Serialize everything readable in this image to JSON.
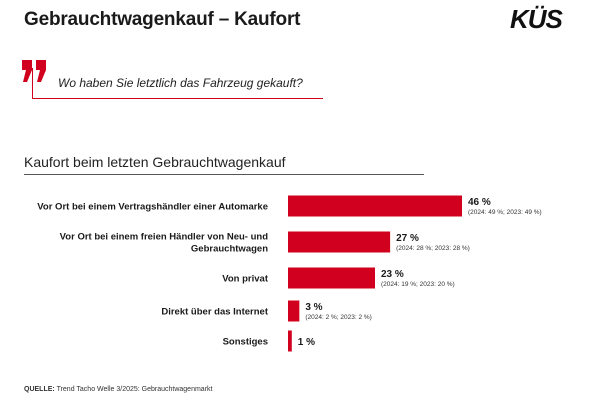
{
  "title": "Gebrauchtwagenkauf – Kaufort",
  "logo": "KÜS",
  "question": "Wo haben Sie letztlich das Fahrzeug gekauft?",
  "source": {
    "label": "QUELLE:",
    "text": "Trend Tacho Welle 3/2025: Gebrauchtwagenmarkt"
  },
  "colors": {
    "accent": "#d0001e"
  },
  "icons": {
    "quote": "quotation-mark-icon"
  },
  "chart_data": {
    "type": "bar",
    "orientation": "horizontal",
    "title": "Kaufort beim letzten Gebrauchtwagenkauf",
    "unit": "%",
    "xlim": [
      0,
      50
    ],
    "grid": false,
    "categories": [
      [
        "Vor Ort bei einem Vertragshändler einer Automarke"
      ],
      [
        "Vor Ort bei einem freien Händler von Neu- und",
        "Gebrauchtwagen"
      ],
      [
        "Von privat"
      ],
      [
        "Direkt über das Internet"
      ],
      [
        "Sonstiges"
      ]
    ],
    "values": [
      46,
      27,
      23,
      3,
      1
    ],
    "value_labels": [
      "46 %",
      "27 %",
      "23 %",
      "3 %",
      "1 %"
    ],
    "notes": [
      "(2024: 49 %; 2023: 49 %)",
      "(2024: 28 %; 2023: 28 %)",
      "(2024: 19 %; 2023: 20 %)",
      "(2024: 2 %; 2023: 2 %)",
      ""
    ]
  }
}
